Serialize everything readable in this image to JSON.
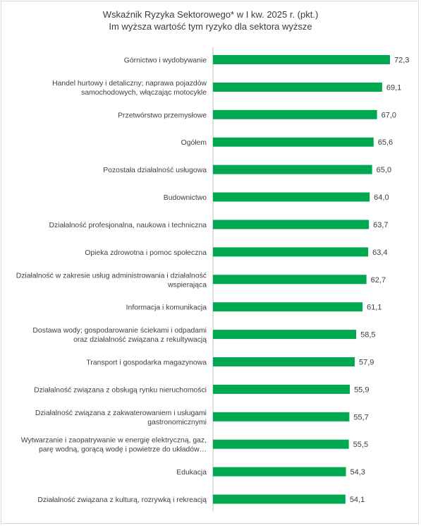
{
  "chart_data": {
    "type": "bar",
    "orientation": "horizontal",
    "title": "Wskaźnik Ryzyka Sektorowego* w I kw. 2025 r. (pkt.)",
    "subtitle": "Im wyższa wartość tym ryzyko dla sektora wyższe",
    "bar_color": "#00a94f",
    "axis_line_color": "#bfbfbf",
    "grid": false,
    "legend": "none",
    "xlim": [
      0,
      72.3
    ],
    "categories": [
      "Górnictwo i wydobywanie",
      "Handel hurtowy i detaliczny; naprawa pojazdów samochodowych, włączając motocykle",
      "Przetwórstwo przemysłowe",
      "Ogółem",
      "Pozostała działalność usługowa",
      "Budownictwo",
      "Działalność profesjonalna, naukowa i techniczna",
      "Opieka zdrowotna i pomoc społeczna",
      "Działalność w zakresie usług administrowania i działalność wspierająca",
      "Informacja i komunikacja",
      "Dostawa wody; gospodarowanie ściekami i odpadami oraz działalność związana z rekultywacją",
      "Transport i gospodarka magazynowa",
      "Działalność związana z obsługą rynku nieruchomości",
      "Działalność związana z zakwaterowaniem i usługami gastronomicznymi",
      "Wytwarzanie i zaopatrywanie w energię elektryczną, gaz, parę wodną, gorącą wodę i powietrze do układów…",
      "Edukacja",
      "Działalność związana z kulturą, rozrywką i rekreacją"
    ],
    "category_lines": [
      [
        "Górnictwo i wydobywanie"
      ],
      [
        "Handel hurtowy i detaliczny; naprawa pojazdów",
        "samochodowych, włączając motocykle"
      ],
      [
        "Przetwórstwo przemysłowe"
      ],
      [
        "Ogółem"
      ],
      [
        "Pozostała działalność usługowa"
      ],
      [
        "Budownictwo"
      ],
      [
        "Działalność profesjonalna, naukowa i techniczna"
      ],
      [
        "Opieka zdrowotna i pomoc społeczna"
      ],
      [
        "Działalność w zakresie usług administrowania i działalność",
        "wspierająca"
      ],
      [
        "Informacja i komunikacja"
      ],
      [
        "Dostawa wody; gospodarowanie ściekami i odpadami",
        "oraz działalność związana z rekultywacją"
      ],
      [
        "Transport i gospodarka magazynowa"
      ],
      [
        "Działalność związana z obsługą rynku nieruchomości"
      ],
      [
        "Działalność związana z zakwaterowaniem i usługami",
        "gastronomicznymi"
      ],
      [
        "Wytwarzanie i zaopatrywanie w energię elektryczną, gaz,",
        "parę wodną, gorącą wodę i powietrze do układów…"
      ],
      [
        "Edukacja"
      ],
      [
        "Działalność związana z kulturą, rozrywką i rekreacją"
      ]
    ],
    "values": [
      72.3,
      69.1,
      67.0,
      65.6,
      65.0,
      64.0,
      63.7,
      63.4,
      62.7,
      61.1,
      58.5,
      57.9,
      55.9,
      55.7,
      55.5,
      54.3,
      54.1
    ],
    "value_labels": [
      "72,3",
      "69,1",
      "67,0",
      "65,6",
      "65,0",
      "64,0",
      "63,7",
      "63,4",
      "62,7",
      "61,1",
      "58,5",
      "57,9",
      "55,9",
      "55,7",
      "55,5",
      "54,3",
      "54,1"
    ]
  }
}
